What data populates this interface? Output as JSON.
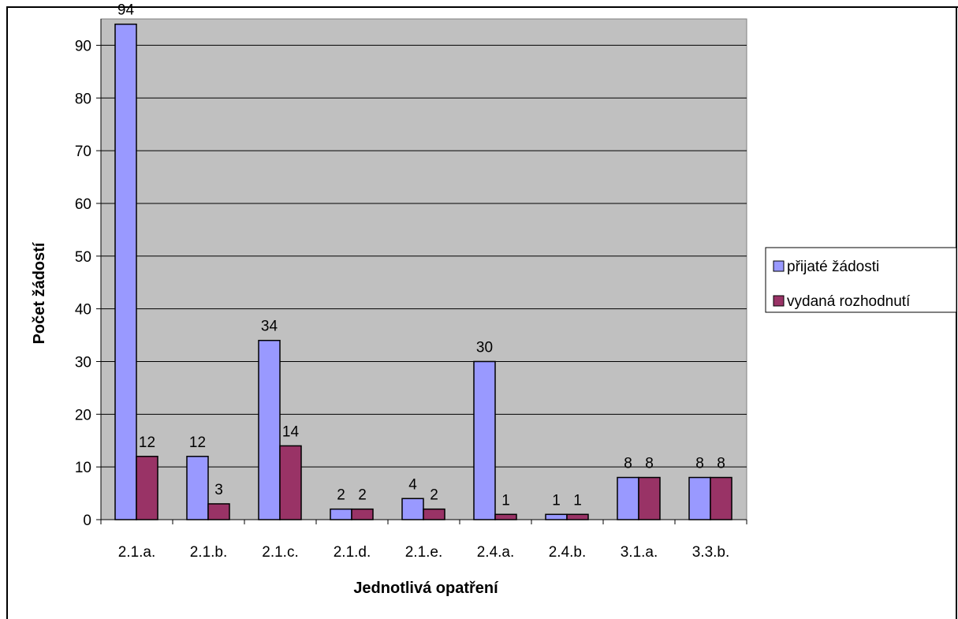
{
  "chart_data": {
    "type": "bar",
    "title": "",
    "xlabel": "Jednotlivá opatření",
    "ylabel": "Počet žádostí",
    "ylim": [
      0,
      95
    ],
    "yticks": [
      "0",
      "10",
      "20",
      "30",
      "40",
      "50",
      "60",
      "70",
      "80",
      "90"
    ],
    "grid": true,
    "legend_position": "right",
    "plot_background": "#c0c0c0",
    "categories": [
      "2.1.a.",
      "2.1.b.",
      "2.1.c.",
      "2.1.d.",
      "2.1.e.",
      "2.4.a.",
      "2.4.b.",
      "3.1.a.",
      "3.3.b."
    ],
    "series": [
      {
        "name": "přijaté žádosti",
        "color": "#9999ff",
        "values": [
          94,
          12,
          34,
          2,
          4,
          30,
          1,
          8,
          8
        ]
      },
      {
        "name": "vydaná rozhodnutí",
        "color": "#993366",
        "values": [
          12,
          3,
          14,
          2,
          2,
          1,
          1,
          8,
          8
        ]
      }
    ]
  }
}
